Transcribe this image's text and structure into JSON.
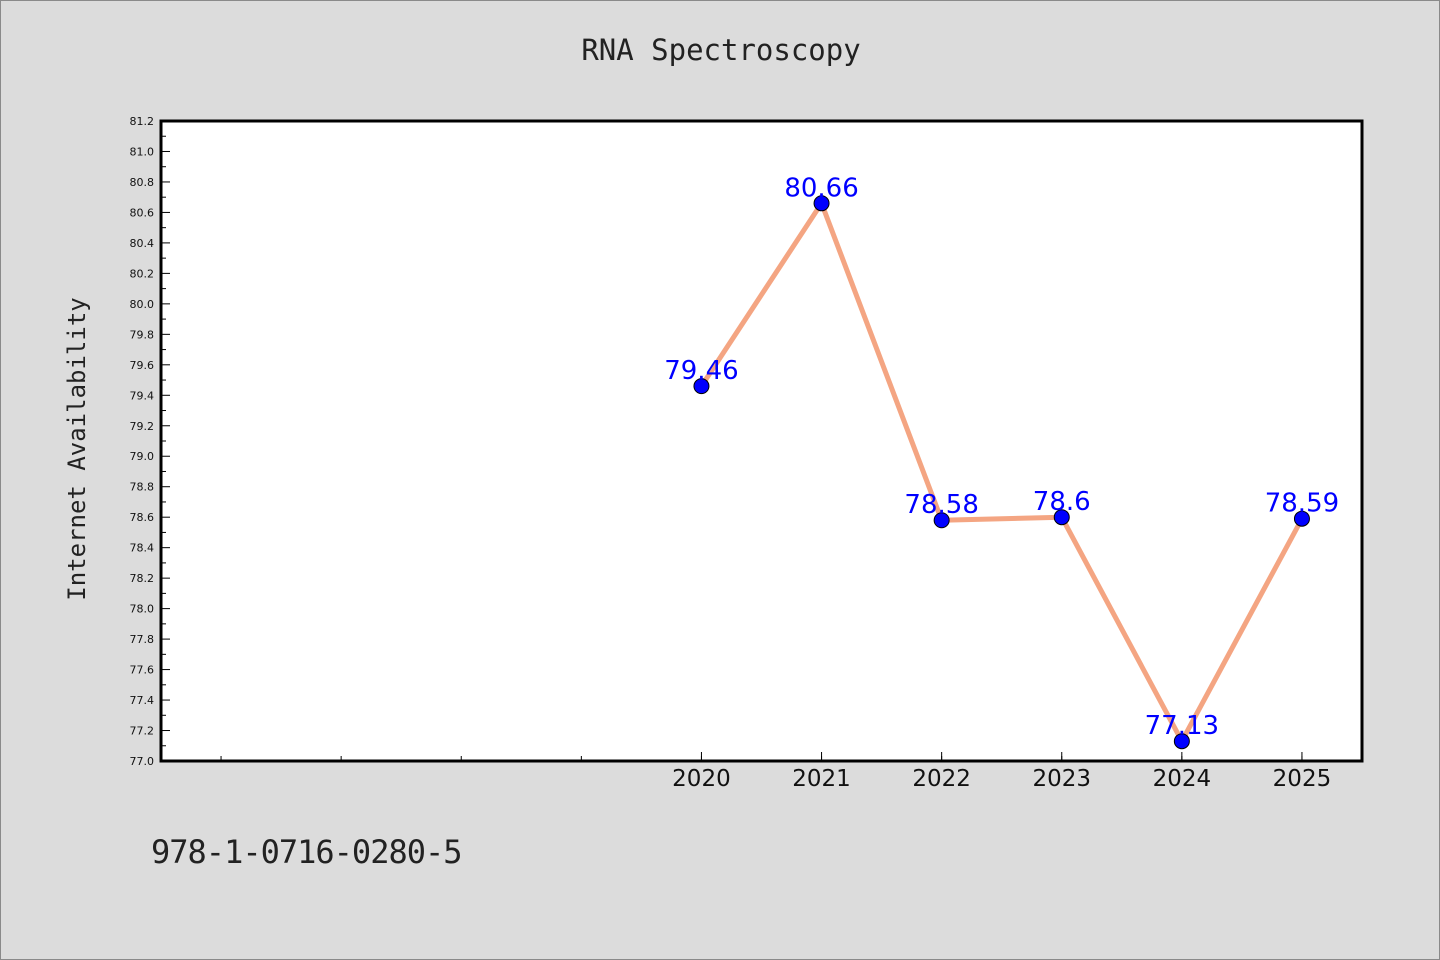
{
  "chart_data": {
    "type": "line",
    "title": "RNA Spectroscopy",
    "xlabel": "",
    "ylabel": "Internet Availability",
    "x": [
      2020,
      2021,
      2022,
      2023,
      2024,
      2025
    ],
    "x_tick_labels": [
      "2020",
      "2021",
      "2022",
      "2023",
      "2024",
      "2025"
    ],
    "series": [
      {
        "values": [
          79.46,
          80.66,
          78.58,
          78.6,
          77.13,
          78.59
        ],
        "labels": [
          "79.46",
          "80.66",
          "78.58",
          "78.6",
          "77.13",
          "78.59"
        ],
        "line_color": "#f4a582",
        "marker_color": "#0000ff"
      }
    ],
    "xlim": [
      2015.5,
      2025.5
    ],
    "ylim": [
      77.0,
      81.2
    ],
    "y_ticks": [
      77.0,
      77.2,
      77.4,
      77.6,
      77.8,
      78.0,
      78.2,
      78.4,
      78.6,
      78.8,
      79.0,
      79.2,
      79.4,
      79.6,
      79.8,
      80.0,
      80.2,
      80.4,
      80.6,
      80.8,
      81.0,
      81.2
    ],
    "y_tick_labels": [
      "77.0",
      "77.2",
      "77.4",
      "77.6",
      "77.8",
      "78.0",
      "78.2",
      "78.4",
      "78.6",
      "78.8",
      "79.0",
      "79.2",
      "79.4",
      "79.6",
      "79.8",
      "80.0",
      "80.2",
      "80.4",
      "80.6",
      "80.8",
      "81.0",
      "81.2"
    ],
    "grid": false,
    "legend": "none"
  },
  "footer": {
    "isbn": "978-1-0716-0280-5"
  },
  "colors": {
    "background": "#dcdcdc",
    "plot_background": "#ffffff",
    "line": "#f4a582",
    "marker": "#0000ff",
    "label": "#0000ff"
  }
}
